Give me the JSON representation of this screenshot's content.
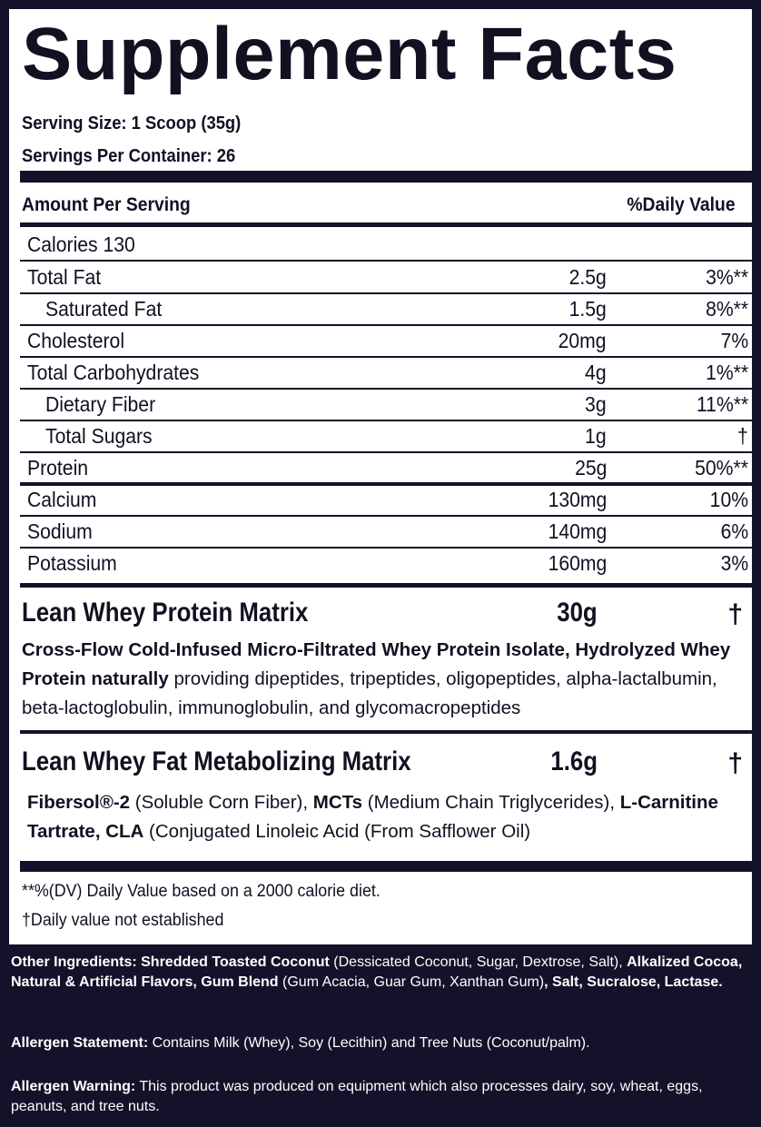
{
  "title": "Supplement Facts",
  "serving_size": "Serving Size: 1 Scoop (35g)",
  "servings_per_container": "Servings Per Container: 26",
  "header": {
    "amount_per_serving": "Amount Per Serving",
    "daily_value": "%Daily Value"
  },
  "calories": "Calories 130",
  "nutrients": [
    {
      "name": "Total Fat",
      "amount": "2.5g",
      "dv": "3%**"
    },
    {
      "name": "Saturated Fat",
      "amount": "1.5g",
      "dv": "8%**"
    },
    {
      "name": "Cholesterol",
      "amount": "20mg",
      "dv": "7%"
    },
    {
      "name": "Total Carbohydrates",
      "amount": "4g",
      "dv": "1%**"
    },
    {
      "name": "Dietary Fiber",
      "amount": "3g",
      "dv": "11%**"
    },
    {
      "name": "Total Sugars",
      "amount": "1g",
      "dv": "†"
    },
    {
      "name": "Protein",
      "amount": "25g",
      "dv": "50%**"
    },
    {
      "name": "Calcium",
      "amount": "130mg",
      "dv": "10%"
    },
    {
      "name": "Sodium",
      "amount": "140mg",
      "dv": "6%"
    },
    {
      "name": "Potassium",
      "amount": "160mg",
      "dv": "3%"
    }
  ],
  "protein_matrix": {
    "title": "Lean Whey Protein Matrix",
    "amount": "30g",
    "dv": "†",
    "desc_bold_1": "Cross-Flow Cold-Infused Micro-Filtrated Whey Protein Isolate, Hydrolyzed Whey Protein naturally",
    "desc_rest": " providing dipeptides, tripeptides, oligopeptides, alpha-lactalbumin, beta-lactoglobulin, immunoglobulin, and glycomacropeptides"
  },
  "fat_matrix": {
    "title": "Lean Whey Fat Metabolizing Matrix",
    "amount": "1.6g",
    "dv": "†",
    "p1_bold": "Fibersol®-2",
    "p1_rest": " (Soluble Corn Fiber), ",
    "p2_bold": "MCTs",
    "p2_rest": " (Medium Chain Triglycerides), ",
    "p3_bold": "L-Carnitine Tartrate, CLA",
    "p3_rest": " (Conjugated Linoleic Acid (From Safflower Oil)"
  },
  "footnotes": {
    "dv_note": "**%(DV) Daily Value based on a 2000 calorie diet.",
    "dagger_note": "†Daily value not established"
  },
  "other_ingredients": {
    "label": "Other Ingredients: ",
    "b1": "Shredded Toasted Coconut",
    "r1": " (Dessicated Coconut, Sugar, Dextrose, Salt), ",
    "b2": "Alkalized Cocoa, Natural & Artificial Flavors, Gum Blend",
    "r2": " (Gum Acacia, Guar Gum, Xanthan Gum)",
    "b3": ", Salt, Sucralose, Lactase."
  },
  "allergen_statement": {
    "label": "Allergen Statement:",
    "text": " Contains Milk (Whey), Soy (Lecithin) and Tree Nuts (Coconut/palm)."
  },
  "allergen_warning": {
    "label": "Allergen Warning:",
    "text": " This product was produced on equipment which also processes dairy, soy, wheat, eggs, peanuts, and tree nuts."
  },
  "colors": {
    "background": "#14112a",
    "panel": "#ffffff",
    "text": "#121021"
  }
}
